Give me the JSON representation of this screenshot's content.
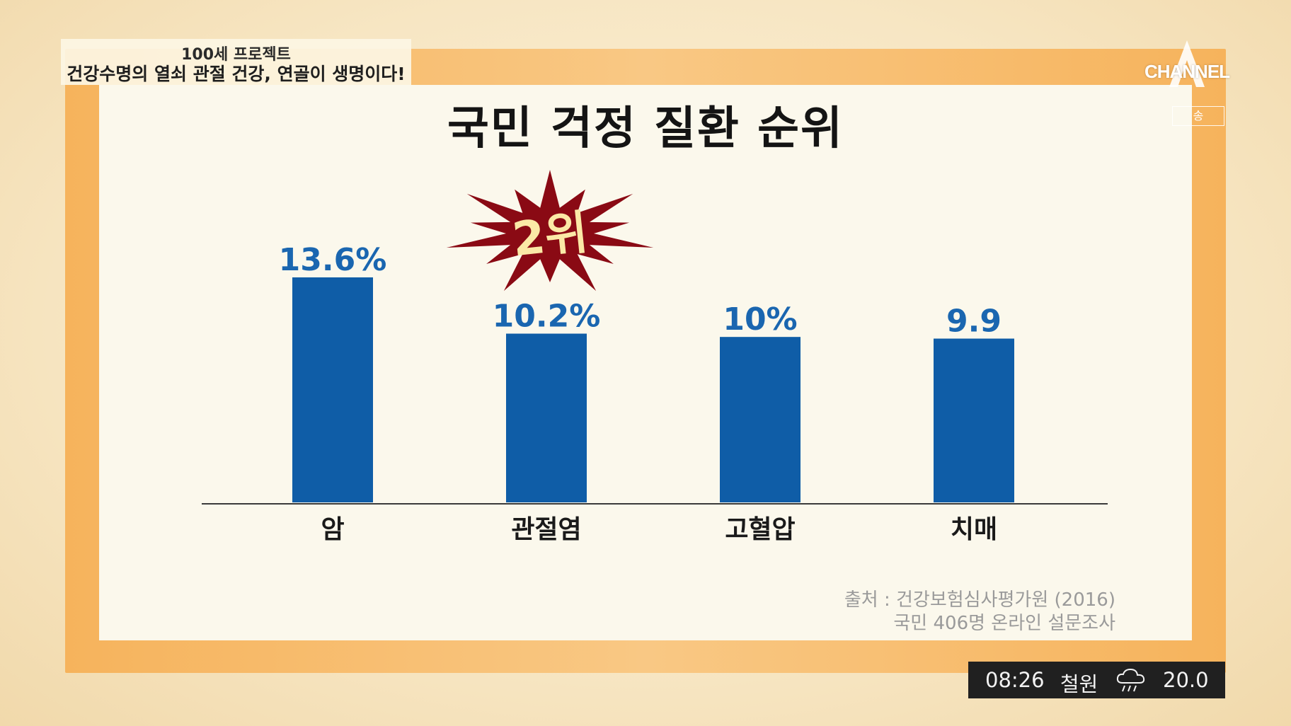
{
  "broadcast": {
    "show_name": "100세 프로젝트",
    "headline": "건강수명의 열쇠 관절 건강, 연골이 생명이다!",
    "channel_logo": "CHANNEL",
    "channel_sub": "송"
  },
  "chart_data": {
    "type": "bar",
    "title": "국민 걱정 질환 순위",
    "categories": [
      "암",
      "관절염",
      "고혈압",
      "치매"
    ],
    "values": [
      13.6,
      10.2,
      10.0,
      9.9
    ],
    "value_labels": [
      "13.6%",
      "10.2%",
      "10%",
      "9.9"
    ],
    "ylim": [
      0,
      13.6
    ],
    "grid": false,
    "bar_color": "#0f5da7",
    "value_label_color": "#1a66b0",
    "highlight": {
      "category": "관절염",
      "label": "2위",
      "burst_color": "#8a0a14",
      "text_color": "#fbe9a6"
    },
    "source_lines": [
      "출처 : 건강보험심사평가원 (2016)",
      "국민 406명 온라인 설문조사"
    ]
  },
  "status": {
    "time": "08:26",
    "location": "철원",
    "weather_icon": "rain-cloud-icon",
    "temperature": "20.0"
  },
  "colors": {
    "frame_orange": "#f6b35c",
    "panel_bg": "#fbf8ec"
  }
}
